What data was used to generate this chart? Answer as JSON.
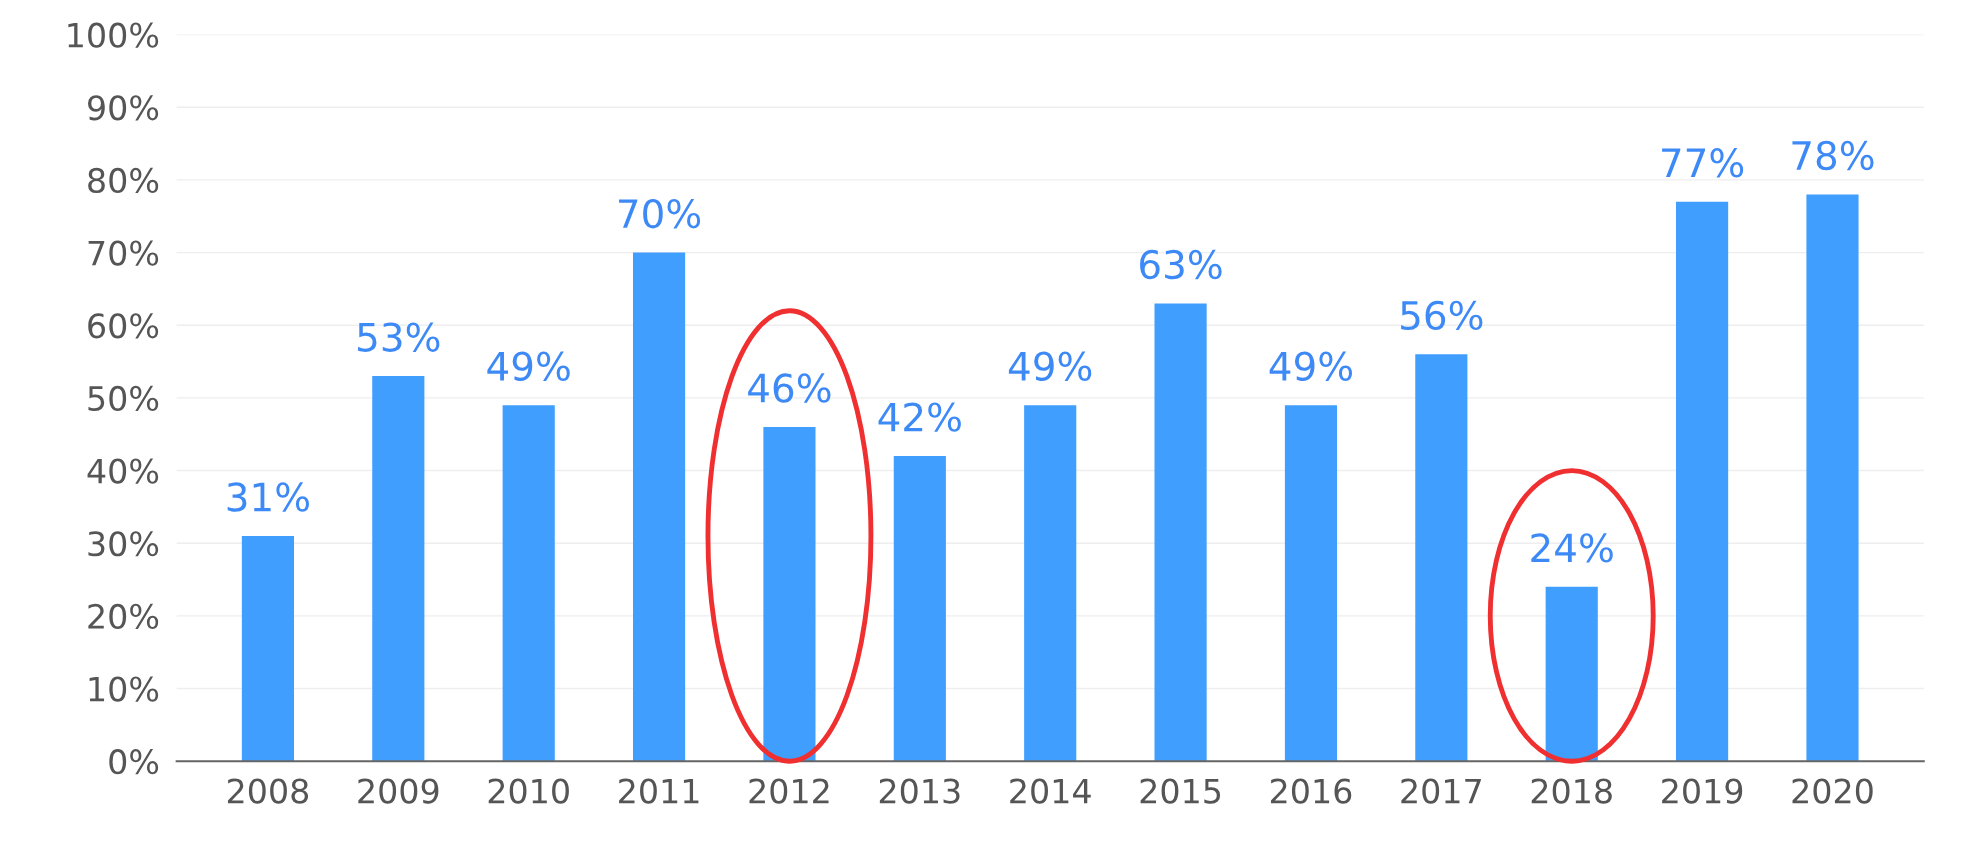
{
  "chart_data": {
    "type": "bar",
    "categories": [
      "2008",
      "2009",
      "2010",
      "2011",
      "2012",
      "2013",
      "2014",
      "2015",
      "2016",
      "2017",
      "2018",
      "2019",
      "2020"
    ],
    "values": [
      31,
      53,
      49,
      70,
      46,
      42,
      49,
      63,
      49,
      56,
      24,
      77,
      78
    ],
    "value_labels": [
      "31%",
      "53%",
      "49%",
      "70%",
      "46%",
      "42%",
      "49%",
      "63%",
      "49%",
      "56%",
      "24%",
      "77%",
      "78%"
    ],
    "color": "#409eff",
    "ylim": [
      0,
      100
    ],
    "yticks": [
      {
        "value": 0,
        "label": "0%"
      },
      {
        "value": 10,
        "label": "10%"
      },
      {
        "value": 20,
        "label": "20%"
      },
      {
        "value": 30,
        "label": "30%"
      },
      {
        "value": 40,
        "label": "40%"
      },
      {
        "value": 50,
        "label": "50%"
      },
      {
        "value": 60,
        "label": "60%"
      },
      {
        "value": 70,
        "label": "70%"
      },
      {
        "value": 80,
        "label": "80%"
      },
      {
        "value": 90,
        "label": "90%"
      },
      {
        "value": 100,
        "label": "100%"
      }
    ],
    "grid": "y"
  }
}
